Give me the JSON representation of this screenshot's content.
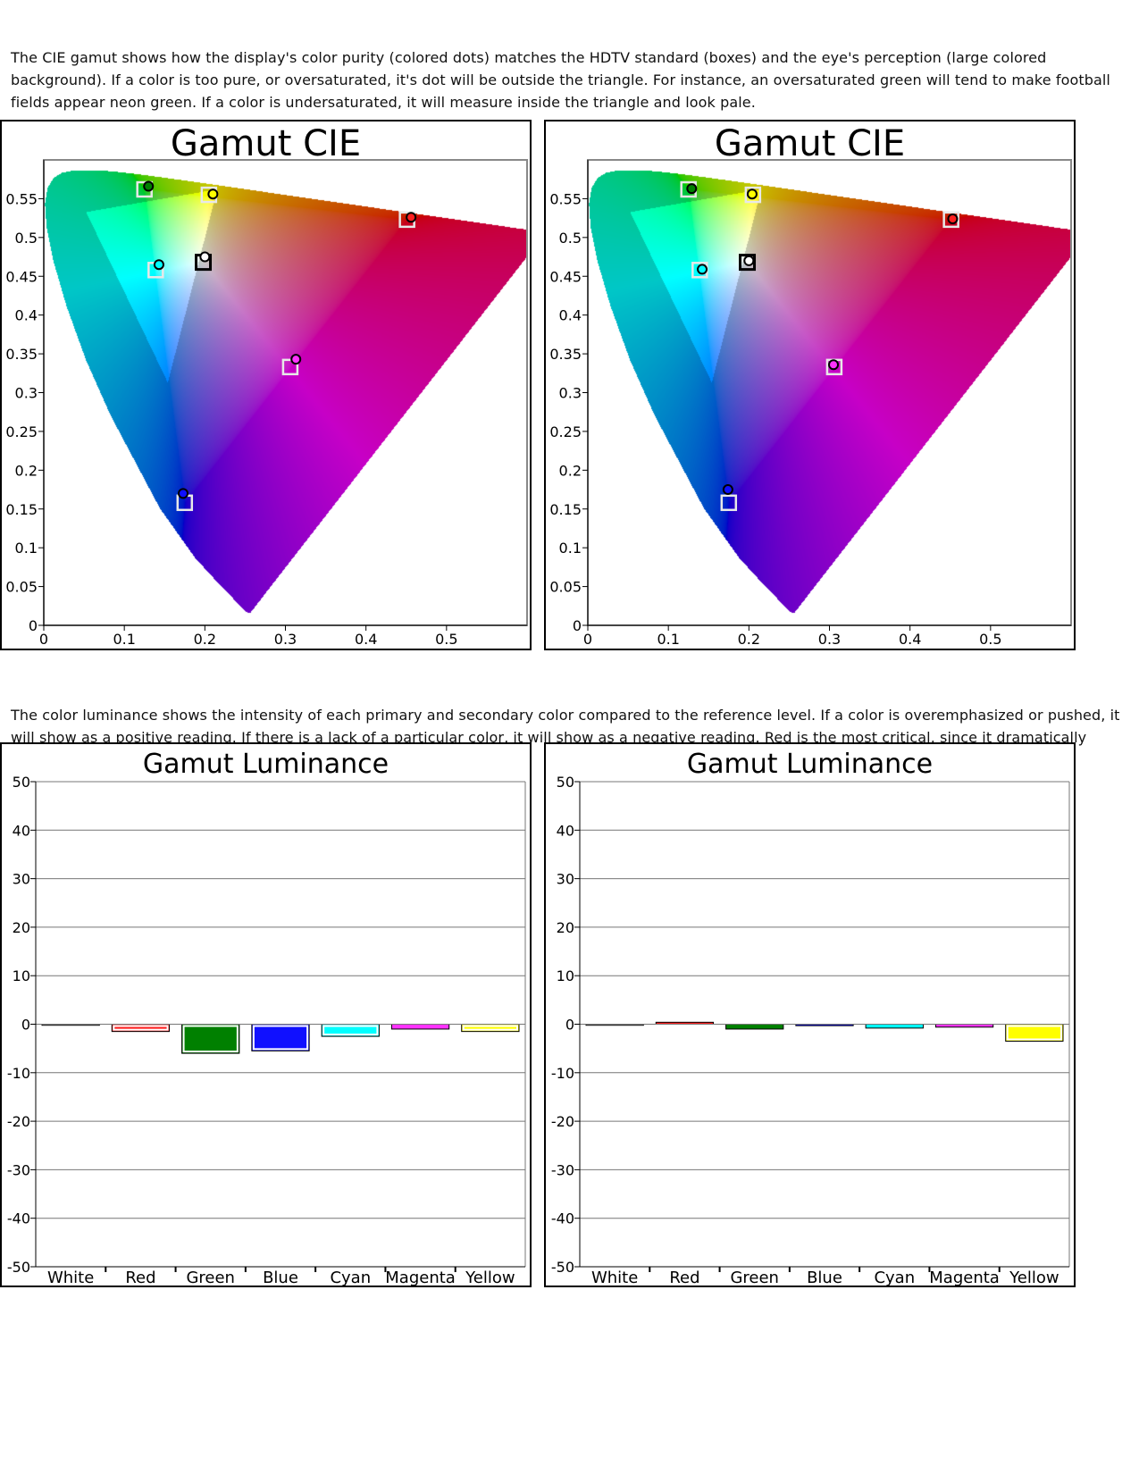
{
  "page": {
    "paragraph_gamut": "The CIE gamut shows how the display's color purity (colored dots) matches the HDTV standard (boxes) and the eye's perception (large colored background).  If a color is too pure, or oversaturated, it's dot will be outside the triangle.  For instance, an oversaturated green will tend to make football fields appear neon green.   If a color is undersaturated, it will measure inside the triangle and look pale.",
    "paragraph_luminance": "The color luminance shows the intensity of each primary and secondary color compared to the reference level.  If a color is overemphasized or pushed, it will show as a positive reading.  If there is a lack of a particular color, it will show as a negative reading.  Red is the most critical, since it dramatically influences flesh tones."
  },
  "colors": {
    "White": "#ffffff",
    "Red": "#ff2020",
    "Green": "#008000",
    "Blue": "#1010ff",
    "Cyan": "#00ffff",
    "Magenta": "#ff33ff",
    "Yellow": "#ffff00"
  },
  "chart_data": [
    {
      "type": "scatter",
      "title": "Gamut CIE",
      "xlim": [
        0,
        0.6
      ],
      "ylim": [
        0,
        0.6
      ],
      "xticks": [
        0,
        0.1,
        0.2,
        0.3,
        0.4,
        0.5
      ],
      "xtick_labels": [
        "0",
        "0.1",
        "0.2",
        "0.3",
        "0.4",
        "0.5"
      ],
      "yticks": [
        0,
        0.05,
        0.1,
        0.15,
        0.2,
        0.25,
        0.3,
        0.35,
        0.4,
        0.45,
        0.5,
        0.55
      ],
      "ytick_labels": [
        "0",
        "0.05",
        "0.1",
        "0.15",
        "0.2",
        "0.25",
        "0.3",
        "0.35",
        "0.4",
        "0.45",
        "0.5",
        "0.55"
      ],
      "targets": [
        {
          "color": "Red",
          "x": 0.451,
          "y": 0.523
        },
        {
          "color": "Green",
          "x": 0.125,
          "y": 0.562
        },
        {
          "color": "Blue",
          "x": 0.175,
          "y": 0.158
        },
        {
          "color": "Cyan",
          "x": 0.139,
          "y": 0.458
        },
        {
          "color": "Magenta",
          "x": 0.306,
          "y": 0.333
        },
        {
          "color": "Yellow",
          "x": 0.205,
          "y": 0.555
        },
        {
          "color": "White",
          "x": 0.198,
          "y": 0.468
        }
      ],
      "measured": [
        {
          "color": "Red",
          "x": 0.456,
          "y": 0.526
        },
        {
          "color": "Green",
          "x": 0.13,
          "y": 0.566
        },
        {
          "color": "Blue",
          "x": 0.173,
          "y": 0.17
        },
        {
          "color": "Cyan",
          "x": 0.143,
          "y": 0.465
        },
        {
          "color": "Magenta",
          "x": 0.313,
          "y": 0.343
        },
        {
          "color": "Yellow",
          "x": 0.21,
          "y": 0.556
        },
        {
          "color": "White",
          "x": 0.2,
          "y": 0.475
        }
      ]
    },
    {
      "type": "scatter",
      "title": "Gamut CIE",
      "xlim": [
        0,
        0.6
      ],
      "ylim": [
        0,
        0.6
      ],
      "xticks": [
        0,
        0.1,
        0.2,
        0.3,
        0.4,
        0.5
      ],
      "xtick_labels": [
        "0",
        "0.1",
        "0.2",
        "0.3",
        "0.4",
        "0.5"
      ],
      "yticks": [
        0,
        0.05,
        0.1,
        0.15,
        0.2,
        0.25,
        0.3,
        0.35,
        0.4,
        0.45,
        0.5,
        0.55
      ],
      "ytick_labels": [
        "0",
        "0.05",
        "0.1",
        "0.15",
        "0.2",
        "0.25",
        "0.3",
        "0.35",
        "0.4",
        "0.45",
        "0.5",
        "0.55"
      ],
      "targets": [
        {
          "color": "Red",
          "x": 0.451,
          "y": 0.523
        },
        {
          "color": "Green",
          "x": 0.125,
          "y": 0.562
        },
        {
          "color": "Blue",
          "x": 0.175,
          "y": 0.158
        },
        {
          "color": "Cyan",
          "x": 0.139,
          "y": 0.458
        },
        {
          "color": "Magenta",
          "x": 0.306,
          "y": 0.333
        },
        {
          "color": "Yellow",
          "x": 0.205,
          "y": 0.555
        },
        {
          "color": "White",
          "x": 0.198,
          "y": 0.468
        }
      ],
      "measured": [
        {
          "color": "Red",
          "x": 0.453,
          "y": 0.524
        },
        {
          "color": "Green",
          "x": 0.129,
          "y": 0.563
        },
        {
          "color": "Blue",
          "x": 0.174,
          "y": 0.175
        },
        {
          "color": "Cyan",
          "x": 0.142,
          "y": 0.459
        },
        {
          "color": "Magenta",
          "x": 0.305,
          "y": 0.336
        },
        {
          "color": "Yellow",
          "x": 0.204,
          "y": 0.556
        },
        {
          "color": "White",
          "x": 0.2,
          "y": 0.47
        }
      ]
    },
    {
      "type": "bar",
      "title": "Gamut Luminance",
      "categories": [
        "White",
        "Red",
        "Green",
        "Blue",
        "Cyan",
        "Magenta",
        "Yellow"
      ],
      "values": [
        0,
        -1.5,
        -6,
        -5.5,
        -2.5,
        -1,
        -1.5
      ],
      "ylim": [
        -50,
        50
      ],
      "yticks": [
        50,
        40,
        30,
        20,
        10,
        0,
        -10,
        -20,
        -30,
        -40,
        -50
      ],
      "ytick_labels": [
        "50",
        "40",
        "30",
        "20",
        "10",
        "0",
        "-10",
        "-20",
        "-30",
        "-40",
        "-50"
      ],
      "grid": true
    },
    {
      "type": "bar",
      "title": "Gamut Luminance",
      "categories": [
        "White",
        "Red",
        "Green",
        "Blue",
        "Cyan",
        "Magenta",
        "Yellow"
      ],
      "values": [
        0,
        0.4,
        -1,
        -0.3,
        -0.8,
        -0.6,
        -3.5
      ],
      "ylim": [
        -50,
        50
      ],
      "yticks": [
        50,
        40,
        30,
        20,
        10,
        0,
        -10,
        -20,
        -30,
        -40,
        -50
      ],
      "ytick_labels": [
        "50",
        "40",
        "30",
        "20",
        "10",
        "0",
        "-10",
        "-20",
        "-30",
        "-40",
        "-50"
      ],
      "grid": true
    }
  ]
}
